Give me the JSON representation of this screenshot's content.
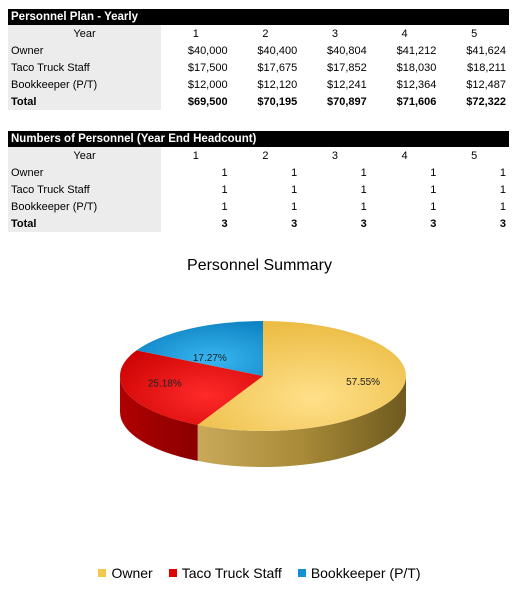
{
  "table1": {
    "title": "Personnel Plan - Yearly",
    "header_label": "Year",
    "years": [
      "1",
      "2",
      "3",
      "4",
      "5"
    ],
    "rows": [
      {
        "label": "Owner",
        "values": [
          "$40,000",
          "$40,400",
          "$40,804",
          "$41,212",
          "$41,624"
        ]
      },
      {
        "label": "Taco Truck Staff",
        "values": [
          "$17,500",
          "$17,675",
          "$17,852",
          "$18,030",
          "$18,211"
        ]
      },
      {
        "label": "Bookkeeper (P/T)",
        "values": [
          "$12,000",
          "$12,120",
          "$12,241",
          "$12,364",
          "$12,487"
        ]
      }
    ],
    "total": {
      "label": "Total",
      "values": [
        "$69,500",
        "$70,195",
        "$70,897",
        "$71,606",
        "$72,322"
      ]
    }
  },
  "table2": {
    "title": "Numbers of Personnel (Year End Headcount)",
    "header_label": "Year",
    "years": [
      "1",
      "2",
      "3",
      "4",
      "5"
    ],
    "rows": [
      {
        "label": "Owner",
        "values": [
          "1",
          "1",
          "1",
          "1",
          "1"
        ]
      },
      {
        "label": "Taco Truck Staff",
        "values": [
          "1",
          "1",
          "1",
          "1",
          "1"
        ]
      },
      {
        "label": "Bookkeeper (P/T)",
        "values": [
          "1",
          "1",
          "1",
          "1",
          "1"
        ]
      }
    ],
    "total": {
      "label": "Total",
      "values": [
        "3",
        "3",
        "3",
        "3",
        "3"
      ]
    }
  },
  "chart_data": {
    "type": "pie",
    "title": "Personnel Summary",
    "categories": [
      "Owner",
      "Taco Truck Staff",
      "Bookkeeper (P/T)"
    ],
    "values": [
      57.55,
      25.18,
      17.27
    ],
    "labels": [
      "57.55%",
      "25.18%",
      "17.27%"
    ],
    "colors": [
      "#f2c94c",
      "#e00000",
      "#1190d6"
    ],
    "legend": "bottom",
    "style": "3d"
  }
}
